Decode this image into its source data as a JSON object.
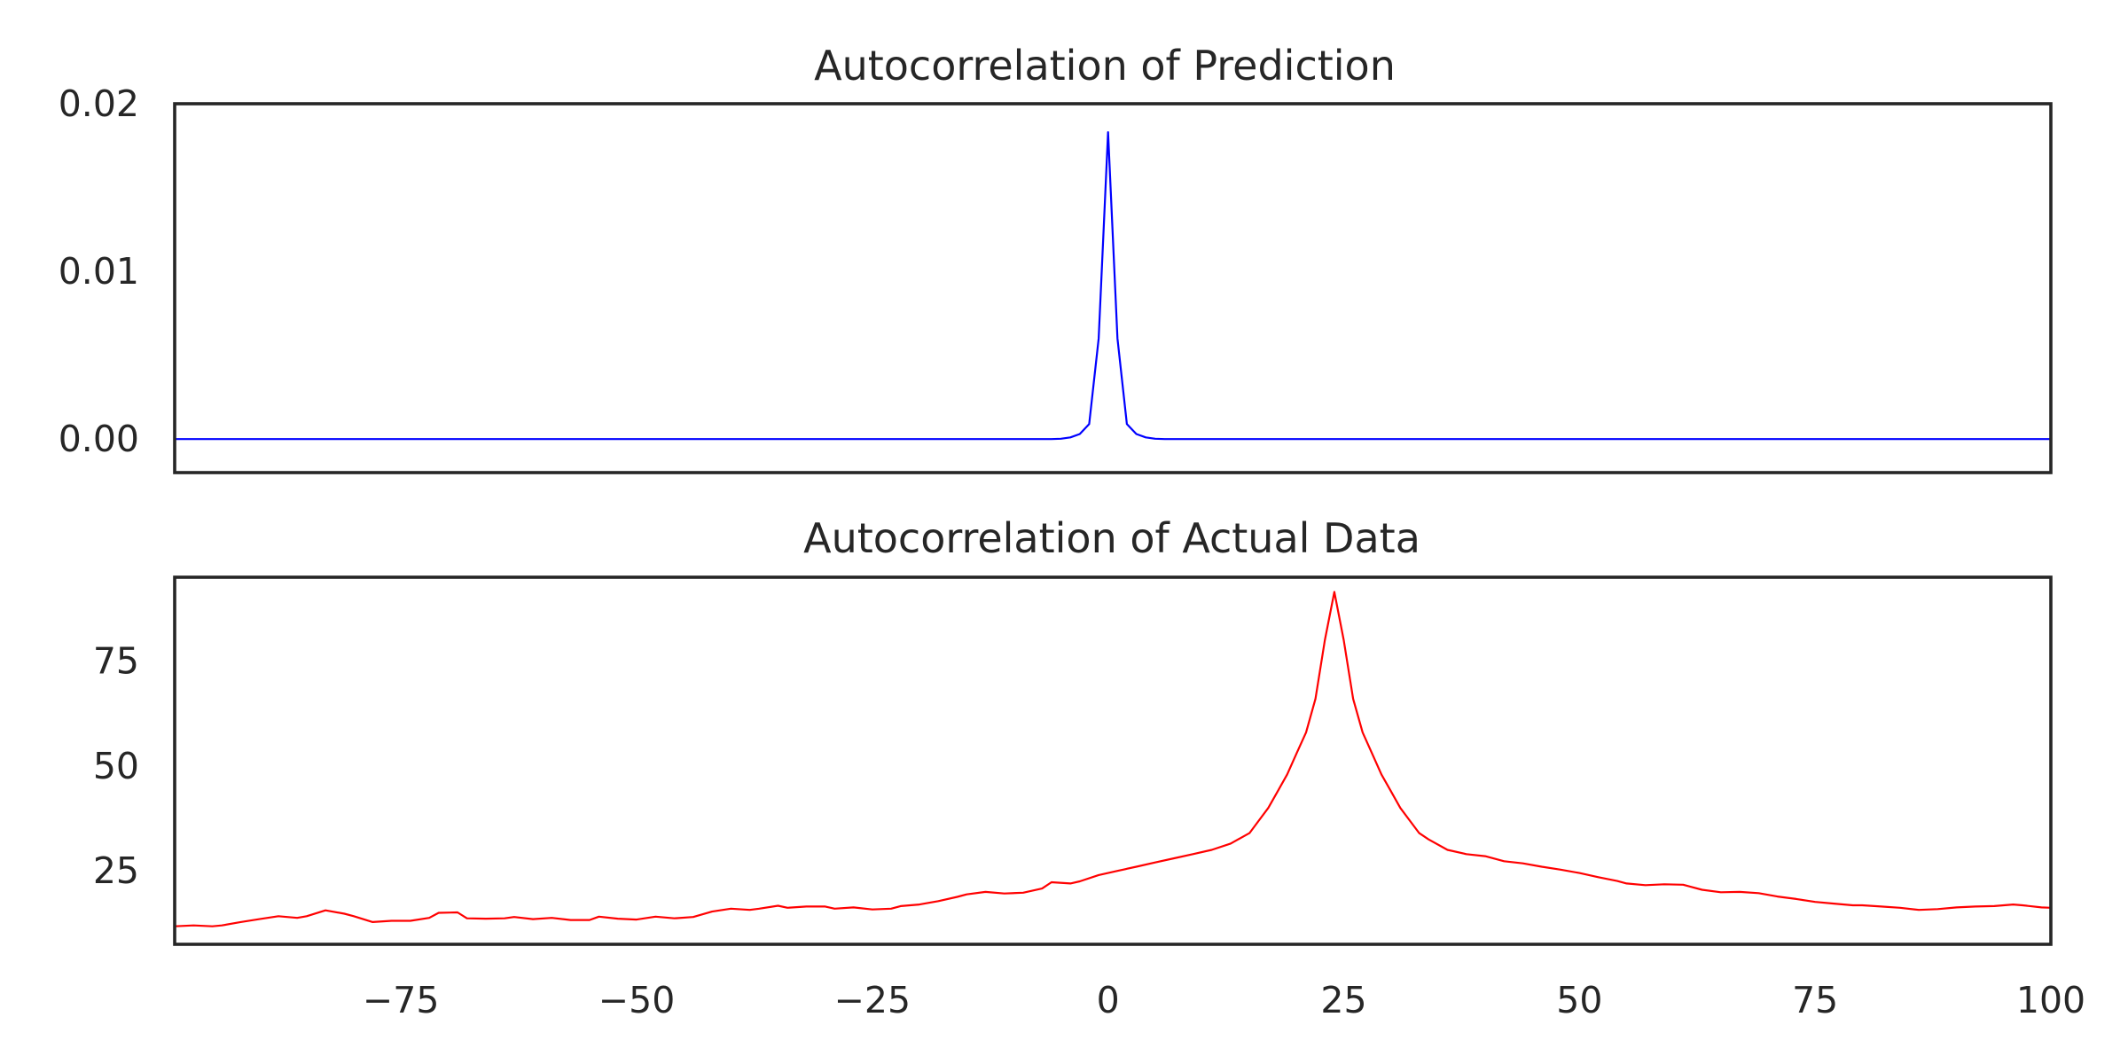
{
  "chart_data": [
    {
      "type": "line",
      "title": "Autocorrelation of Prediction",
      "xlabel": "",
      "ylabel": "",
      "xlim": [
        -99,
        100
      ],
      "ylim": [
        -0.002,
        0.02
      ],
      "xticks": [],
      "xtick_labels": [],
      "yticks": [
        0,
        0.01,
        0.02
      ],
      "ytick_labels": [
        "0.00",
        "0.01",
        "0.02"
      ],
      "grid": false,
      "legend": "none",
      "series": [
        {
          "color": "#0000ff",
          "points": [
            [
              -99,
              0
            ],
            [
              -6,
              0
            ],
            [
              -5,
              2e-05
            ],
            [
              -4,
              0.0001
            ],
            [
              -3,
              0.0003
            ],
            [
              -2,
              0.0009
            ],
            [
              -1,
              0.006
            ],
            [
              0,
              0.0183
            ],
            [
              1,
              0.006
            ],
            [
              2,
              0.0009
            ],
            [
              3,
              0.0003
            ],
            [
              4,
              0.0001
            ],
            [
              5,
              2e-05
            ],
            [
              6,
              0
            ],
            [
              100,
              0
            ]
          ]
        }
      ]
    },
    {
      "type": "line",
      "title": "Autocorrelation of Actual Data",
      "xlabel": "",
      "ylabel": "",
      "xlim": [
        -99,
        100
      ],
      "ylim": [
        7.5,
        95
      ],
      "xticks": [
        -75,
        -50,
        -25,
        0,
        25,
        50,
        75,
        100
      ],
      "xtick_labels": [
        "−75",
        "−50",
        "−25",
        "0",
        "25",
        "50",
        "75",
        "100"
      ],
      "yticks": [
        25,
        50,
        75
      ],
      "ytick_labels": [
        "25",
        "50",
        "75"
      ],
      "grid": false,
      "legend": "none",
      "series": [
        {
          "color": "#ff0000",
          "points": [
            [
              -99,
              11.8
            ],
            [
              -97,
              12.0
            ],
            [
              -95,
              11.8
            ],
            [
              -94,
              12.0
            ],
            [
              -92,
              12.8
            ],
            [
              -90,
              13.5
            ],
            [
              -88,
              14.2
            ],
            [
              -86,
              13.8
            ],
            [
              -85,
              14.2
            ],
            [
              -83,
              15.6
            ],
            [
              -81,
              14.8
            ],
            [
              -80,
              14.2
            ],
            [
              -78,
              12.8
            ],
            [
              -76,
              13.1
            ],
            [
              -74,
              13.1
            ],
            [
              -72,
              13.8
            ],
            [
              -71,
              15.0
            ],
            [
              -69,
              15.1
            ],
            [
              -68,
              13.7
            ],
            [
              -66,
              13.6
            ],
            [
              -64,
              13.7
            ],
            [
              -63,
              14.0
            ],
            [
              -61,
              13.5
            ],
            [
              -59,
              13.8
            ],
            [
              -57,
              13.3
            ],
            [
              -55,
              13.3
            ],
            [
              -54,
              14.1
            ],
            [
              -52,
              13.6
            ],
            [
              -50,
              13.4
            ],
            [
              -48,
              14.1
            ],
            [
              -46,
              13.7
            ],
            [
              -44,
              14.0
            ],
            [
              -42,
              15.3
            ],
            [
              -40,
              16.0
            ],
            [
              -38,
              15.7
            ],
            [
              -37,
              16.0
            ],
            [
              -35,
              16.7
            ],
            [
              -34,
              16.2
            ],
            [
              -32,
              16.5
            ],
            [
              -30,
              16.5
            ],
            [
              -29,
              16.0
            ],
            [
              -27,
              16.3
            ],
            [
              -25,
              15.8
            ],
            [
              -23,
              16.0
            ],
            [
              -22,
              16.6
            ],
            [
              -20,
              17.0
            ],
            [
              -18,
              17.8
            ],
            [
              -16,
              18.8
            ],
            [
              -15,
              19.4
            ],
            [
              -13,
              20.0
            ],
            [
              -11,
              19.6
            ],
            [
              -9,
              19.8
            ],
            [
              -7,
              20.8
            ],
            [
              -6,
              22.3
            ],
            [
              -4,
              22.0
            ],
            [
              -3,
              22.5
            ],
            [
              -1,
              24.0
            ],
            [
              1,
              25.0
            ],
            [
              3,
              26.0
            ],
            [
              5,
              27.0
            ],
            [
              7,
              28.0
            ],
            [
              9,
              29.0
            ],
            [
              11,
              30.0
            ],
            [
              13,
              31.5
            ],
            [
              15,
              34.0
            ],
            [
              16,
              37.0
            ],
            [
              17,
              40.0
            ],
            [
              18,
              44.0
            ],
            [
              19,
              48.0
            ],
            [
              20,
              53.0
            ],
            [
              21,
              58.0
            ],
            [
              22,
              66.0
            ],
            [
              23,
              80.0
            ],
            [
              24,
              91.5
            ],
            [
              25,
              80.0
            ],
            [
              26,
              66.0
            ],
            [
              27,
              58.0
            ],
            [
              28,
              53.0
            ],
            [
              29,
              48.0
            ],
            [
              30,
              44.0
            ],
            [
              31,
              40.0
            ],
            [
              32,
              37.0
            ],
            [
              33,
              34.0
            ],
            [
              34,
              32.5
            ],
            [
              36,
              30.0
            ],
            [
              38,
              29.0
            ],
            [
              40,
              28.5
            ],
            [
              42,
              27.3
            ],
            [
              44,
              26.8
            ],
            [
              46,
              26.0
            ],
            [
              48,
              25.3
            ],
            [
              50,
              24.5
            ],
            [
              52,
              23.5
            ],
            [
              54,
              22.6
            ],
            [
              55,
              22.0
            ],
            [
              57,
              21.6
            ],
            [
              59,
              21.8
            ],
            [
              61,
              21.7
            ],
            [
              63,
              20.5
            ],
            [
              65,
              19.9
            ],
            [
              67,
              20.0
            ],
            [
              69,
              19.7
            ],
            [
              71,
              18.9
            ],
            [
              73,
              18.3
            ],
            [
              75,
              17.6
            ],
            [
              77,
              17.2
            ],
            [
              79,
              16.8
            ],
            [
              80,
              16.8
            ],
            [
              82,
              16.5
            ],
            [
              84,
              16.2
            ],
            [
              86,
              15.7
            ],
            [
              88,
              15.9
            ],
            [
              90,
              16.3
            ],
            [
              92,
              16.5
            ],
            [
              94,
              16.6
            ],
            [
              96,
              17.0
            ],
            [
              97,
              16.8
            ],
            [
              99,
              16.3
            ],
            [
              100,
              16.2
            ]
          ]
        }
      ]
    }
  ]
}
